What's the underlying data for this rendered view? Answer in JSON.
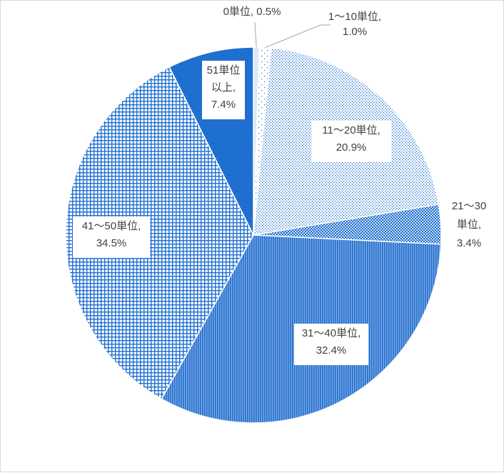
{
  "chart_data": {
    "type": "pie",
    "title": "",
    "categories": [
      "0単位",
      "1～10単位",
      "11～20単位",
      "21～30単位",
      "31～40単位",
      "41～50単位",
      "51単位以上"
    ],
    "values": [
      0.5,
      1.0,
      20.9,
      3.4,
      32.4,
      34.5,
      7.4
    ],
    "unit": "%",
    "labels": [
      {
        "lines": [
          "0単位, 0.5%"
        ]
      },
      {
        "lines": [
          "1～10単位,",
          "1.0%"
        ]
      },
      {
        "lines": [
          "11～20単位,",
          "20.9%"
        ]
      },
      {
        "lines": [
          "21～30",
          "単位,",
          "3.4%"
        ]
      },
      {
        "lines": [
          "31～40単位,",
          "32.4%"
        ]
      },
      {
        "lines": [
          "41～50単位,",
          "34.5%"
        ]
      },
      {
        "lines": [
          "51単位",
          "以上,",
          "7.4%"
        ]
      }
    ],
    "legend": "none",
    "data_labels": "outside-end with leader lines for small slices",
    "colors": {
      "primary_blue": "#1f6fd0",
      "light_blue_fill": "#dbe9f8",
      "border": "#ffffff",
      "leader_line": "#a6a6a6"
    }
  }
}
